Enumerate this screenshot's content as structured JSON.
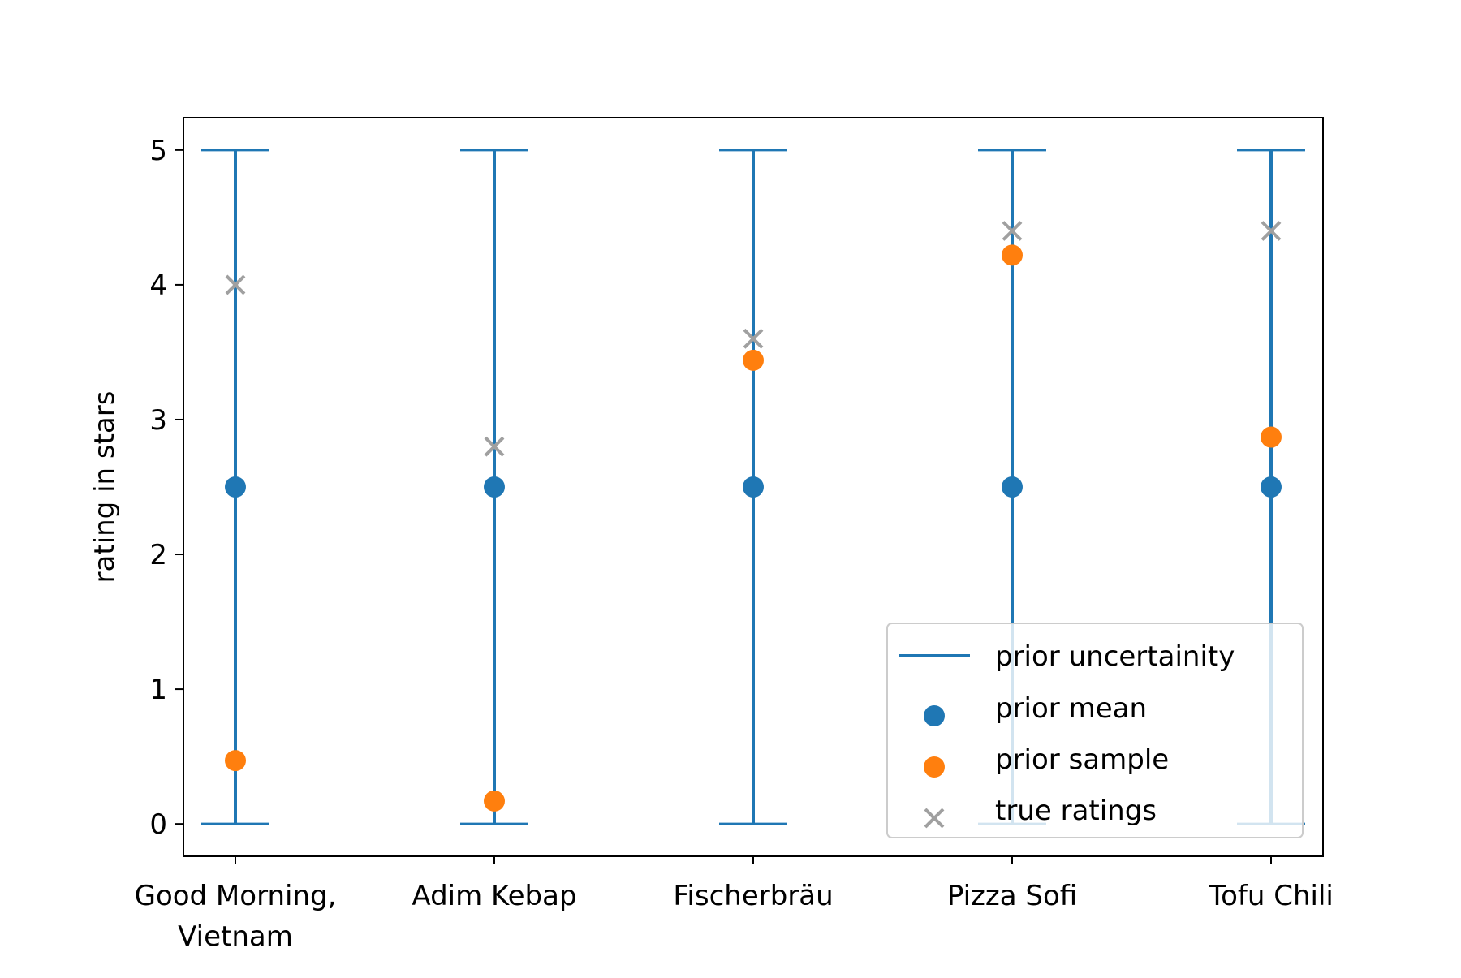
{
  "chart_data": {
    "type": "scatter",
    "title": "",
    "xlabel": "",
    "ylabel": "rating in stars",
    "ylim": [
      -0.24,
      5.24
    ],
    "yticks": [
      0,
      1,
      2,
      3,
      4,
      5
    ],
    "grid": false,
    "categories": [
      [
        "Good Morning,",
        "Vietnam"
      ],
      [
        "Adim Kebap"
      ],
      [
        "Fischerbräu"
      ],
      [
        "Pizza Sofi"
      ],
      [
        "Tofu Chili"
      ]
    ],
    "series": [
      {
        "name": "prior uncertainity",
        "kind": "errorbar",
        "color": "#1f77b4",
        "low": [
          0,
          0,
          0,
          0,
          0
        ],
        "high": [
          5,
          5,
          5,
          5,
          5
        ]
      },
      {
        "name": "prior mean",
        "kind": "point",
        "color": "#1f77b4",
        "values": [
          2.5,
          2.5,
          2.5,
          2.5,
          2.5
        ]
      },
      {
        "name": "prior sample",
        "kind": "point",
        "color": "#ff7f0e",
        "values": [
          0.47,
          0.17,
          3.44,
          4.22,
          2.87
        ]
      },
      {
        "name": "true ratings",
        "kind": "cross",
        "color": "#a0a0a0",
        "values": [
          4.0,
          2.8,
          3.6,
          4.4,
          4.4
        ]
      }
    ],
    "legend": {
      "position": "lower-right"
    }
  }
}
